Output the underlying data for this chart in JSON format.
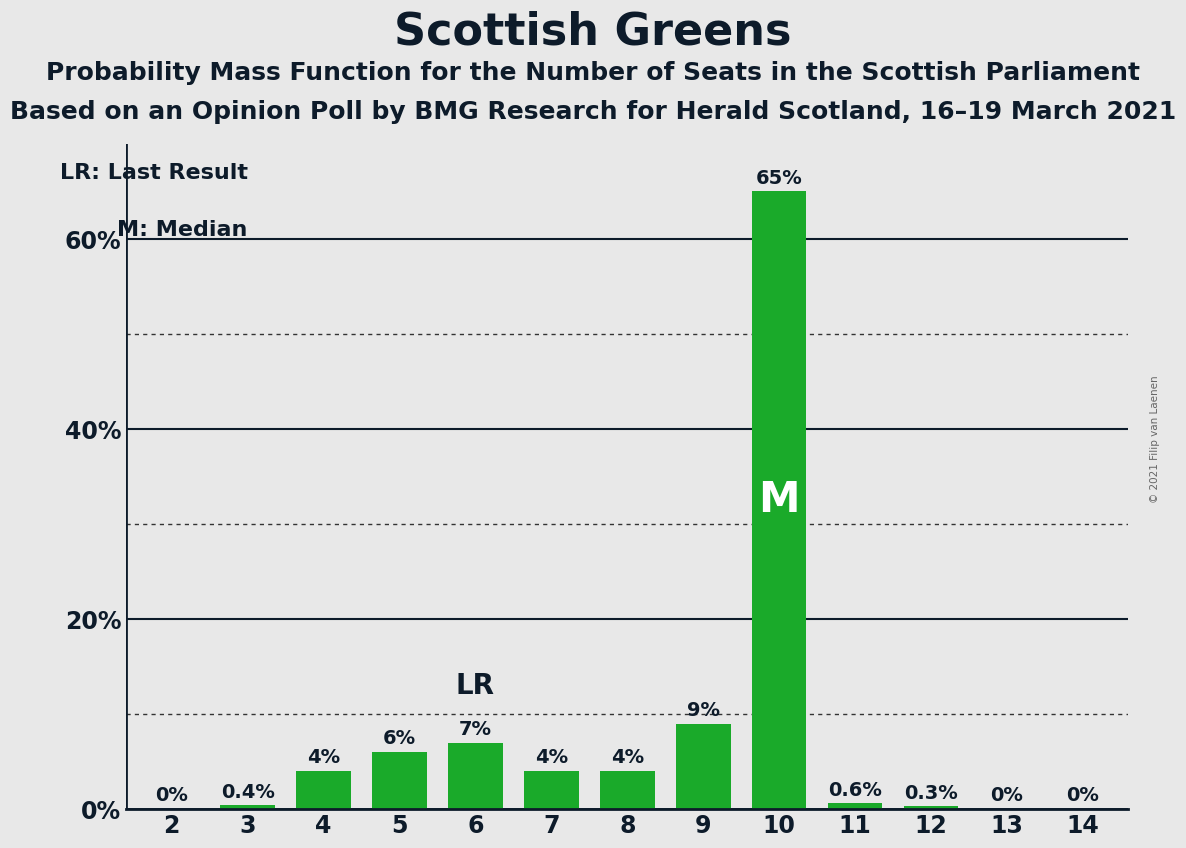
{
  "title": "Scottish Greens",
  "subtitle1": "Probability Mass Function for the Number of Seats in the Scottish Parliament",
  "subtitle2": "Based on an Opinion Poll by BMG Research for Herald Scotland, 16–19 March 2021",
  "categories": [
    2,
    3,
    4,
    5,
    6,
    7,
    8,
    9,
    10,
    11,
    12,
    13,
    14
  ],
  "values": [
    0.0,
    0.4,
    4.0,
    6.0,
    7.0,
    4.0,
    4.0,
    9.0,
    65.0,
    0.6,
    0.3,
    0.0,
    0.0
  ],
  "labels": [
    "0%",
    "0.4%",
    "4%",
    "6%",
    "7%",
    "4%",
    "4%",
    "9%",
    "65%",
    "0.6%",
    "0.3%",
    "0%",
    "0%"
  ],
  "bar_color": "#1aaa2a",
  "lr_seat": 6,
  "median_seat": 10,
  "legend_lr": "LR: Last Result",
  "legend_m": "M: Median",
  "background_color": "#e8e8e8",
  "title_fontsize": 32,
  "subtitle_fontsize": 18,
  "ylim": [
    0,
    70
  ],
  "yticks": [
    0,
    20,
    40,
    60
  ],
  "ytick_labels": [
    "0%",
    "20%",
    "40%",
    "60%"
  ],
  "dotted_yticks": [
    10,
    30,
    50
  ],
  "solid_yticks": [
    20,
    40,
    60
  ],
  "watermark": "© 2021 Filip van Laenen",
  "label_fontsize": 14,
  "tick_fontsize": 17
}
